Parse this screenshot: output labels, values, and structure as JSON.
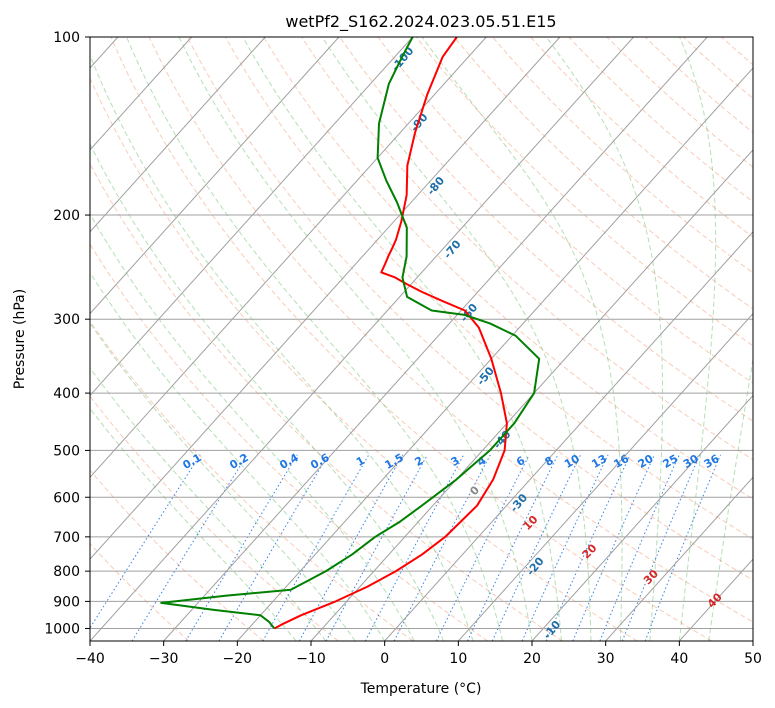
{
  "chart_data": {
    "type": "line",
    "title": "wetPf2_S162.2024.023.05.51.E15",
    "xlabel": "Temperature (°C)",
    "ylabel": "Pressure (hPa)",
    "xlim": [
      -40,
      50
    ],
    "ylim": [
      1050,
      100
    ],
    "y_scale": "log",
    "x_ticks": [
      -40,
      -30,
      -20,
      -10,
      0,
      10,
      20,
      30,
      40,
      50
    ],
    "x_tick_labels": [
      "−40",
      "−30",
      "−20",
      "−10",
      "0",
      "10",
      "20",
      "30",
      "40",
      "50"
    ],
    "y_ticks": [
      1000,
      900,
      800,
      700,
      600,
      500,
      400,
      300,
      200,
      100
    ],
    "y_tick_labels": [
      "1000",
      "900",
      "800",
      "700",
      "600",
      "500",
      "400",
      "300",
      "200",
      "100"
    ],
    "grid": true,
    "skew": "skew-T log-p",
    "series": [
      {
        "color": "#ff0000",
        "style": "temperature profile",
        "x": [
          -16.5,
          -16.0,
          -14.5,
          -11.5,
          -9.0,
          -7.0,
          -5.5,
          -4.5,
          -4.0,
          -5.0,
          -7.0,
          -10.0,
          -14.5,
          -20.0,
          -25.5,
          -29.5,
          -33.5,
          -37.5,
          -40.5,
          -43.0,
          -45.5,
          -46.0,
          -46.5,
          -47.0,
          -47.5,
          -49.0,
          -51.5,
          -55.0,
          -58.0,
          -61.0,
          -63.5,
          -64.0
        ],
        "y": [
          1000,
          985,
          950,
          900,
          850,
          800,
          750,
          700,
          620,
          560,
          500,
          450,
          400,
          350,
          310,
          290,
          280,
          270,
          262,
          255,
          250,
          242,
          235,
          227,
          220,
          205,
          185,
          165,
          145,
          125,
          108,
          100
        ]
      },
      {
        "color": "#008000",
        "style": "dewpoint profile",
        "x": [
          -16.5,
          -18.0,
          -20.0,
          -27.0,
          -35.0,
          -27.0,
          -19.0,
          -16.5,
          -15.0,
          -14.0,
          -12.5,
          -11.5,
          -10.0,
          -9.0,
          -9.0,
          -10.0,
          -13.5,
          -19.5,
          -24.5,
          -29.0,
          -34.0,
          -39.0,
          -42.0,
          -44.0,
          -47.5,
          -52.0,
          -56.0,
          -60.0,
          -64.0,
          -67.5,
          -69.0,
          -70.0
        ],
        "y": [
          1000,
          975,
          950,
          930,
          905,
          880,
          860,
          800,
          750,
          700,
          660,
          620,
          560,
          500,
          450,
          400,
          350,
          320,
          305,
          295,
          290,
          275,
          255,
          235,
          210,
          190,
          175,
          160,
          140,
          120,
          108,
          100
        ]
      }
    ],
    "dry_adiabat_labels": [
      "0",
      "10",
      "20",
      "30",
      "40"
    ],
    "mixing_ratio_labels": [
      "0.1",
      "0.2",
      "0.4",
      "0.6",
      "1",
      "1.5",
      "2",
      "3",
      "4",
      "6",
      "8",
      "10",
      "13",
      "16",
      "20",
      "25",
      "30",
      "36"
    ],
    "moist_adiabat_labels": [
      "-100",
      "-90",
      "-80",
      "-70",
      "-60",
      "-50",
      "-40",
      "-30",
      "-20",
      "-10"
    ],
    "colors": {
      "temperature": "#ff0000",
      "dewpoint": "#008000",
      "isotherm": "#a0a0a0",
      "dry_adiabat": "#f4a07d",
      "moist_adiabat": "#6bbf6b",
      "mixing_ratio": "#1f77e4",
      "dry_label": "#d62728",
      "moist_label": "#1f6fa8",
      "mixing_label": "#1f77e4",
      "zero_label": "#888888"
    }
  }
}
